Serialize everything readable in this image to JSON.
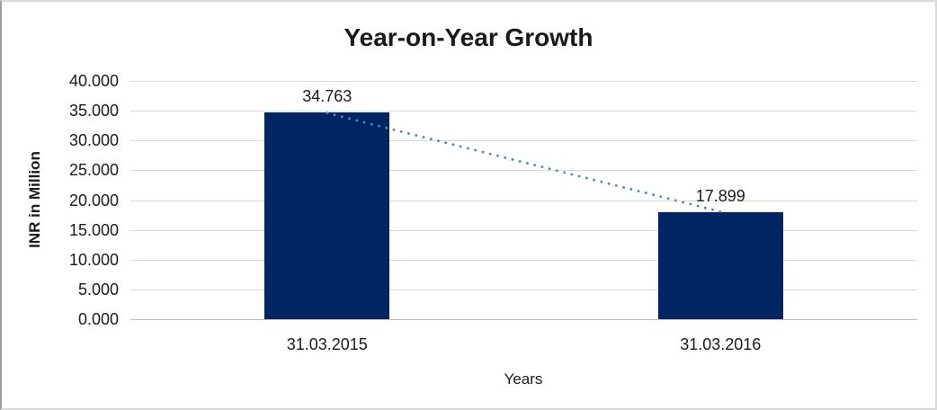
{
  "chart_data": {
    "type": "bar",
    "title": "Year-on-Year Growth",
    "xlabel": "Years",
    "ylabel": "INR in Million",
    "categories": [
      "31.03.2015",
      "31.03.2016"
    ],
    "values": [
      34.763,
      17.899
    ],
    "value_labels": [
      "34.763",
      "17.899"
    ],
    "ylim": [
      0,
      40
    ],
    "yticks": [
      {
        "value": 40,
        "label": "40.000"
      },
      {
        "value": 35,
        "label": "35.000"
      },
      {
        "value": 30,
        "label": "30.000"
      },
      {
        "value": 25,
        "label": "25.000"
      },
      {
        "value": 20,
        "label": "20.000"
      },
      {
        "value": 15,
        "label": "15.000"
      },
      {
        "value": 10,
        "label": "10.000"
      },
      {
        "value": 5,
        "label": "5.000"
      },
      {
        "value": 0,
        "label": "0.000"
      }
    ],
    "grid": true,
    "legend": "none",
    "trendline": {
      "style": "dotted",
      "connects": "bar tops",
      "color": "#4a86c8"
    },
    "colors": {
      "bar": "#012462",
      "trendline": "#4a86c8",
      "gridline": "#d9d9d9",
      "axis_line": "#c0c0c0",
      "text": "#1a1a1a",
      "border": "#d9d9d9",
      "background": "#ffffff"
    }
  }
}
